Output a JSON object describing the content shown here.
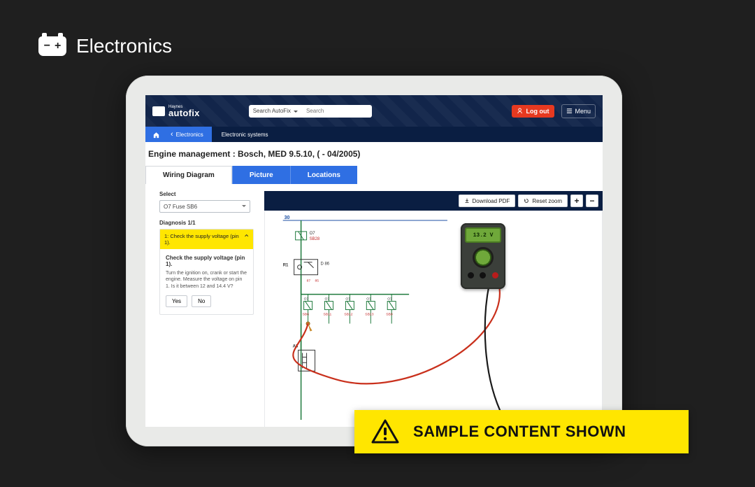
{
  "banner": {
    "title": "Electronics"
  },
  "app": {
    "logo_small": "Haynes",
    "logo_big": "autofix",
    "search_scope": "Search AutoFix",
    "search_placeholder": "Search",
    "logout": "Log out",
    "menu": "Menu"
  },
  "crumbs": {
    "back": "Electronics",
    "current": "Electronic systems"
  },
  "page_title": "Engine management :  Bosch, MED 9.5.10, ( - 04/2005)",
  "tabs": {
    "wiring": "Wiring Diagram",
    "picture": "Picture",
    "locations": "Locations"
  },
  "sidebar": {
    "select_label": "Select",
    "select_value": "O7  Fuse  SB6",
    "diagnosis_label": "Diagnosis 1/1",
    "acc_title": "1: Check the supply voltage (pin 1).",
    "acc_body_title": "Check the supply voltage (pin 1).",
    "acc_body_text": "Turn the ignition on, crank or start the engine. Measure the voltage on pin 1. Is it between 12 and 14.4 V?",
    "yes": "Yes",
    "no": "No"
  },
  "toolbar": {
    "download": "Download PDF",
    "reset": "Reset zoom",
    "plus": "+",
    "minus": "−"
  },
  "diagram": {
    "meter_reading": "13.2 V",
    "label_30": "30",
    "labels_top": {
      "o7": "O7",
      "sb28": "SB28"
    },
    "label_r1": "R1",
    "label_d86": "D 86",
    "label_a3": "A3",
    "fuse_row": [
      {
        "top": "O7",
        "bottom": "SB6"
      },
      {
        "top": "O7",
        "bottom": "SB11"
      },
      {
        "top": "O7",
        "bottom": "SB12"
      },
      {
        "top": "O7",
        "bottom": "SB13"
      },
      {
        "top": "O7",
        "bottom": "SB9"
      }
    ],
    "colors": {
      "wire_green": "#1f7a3d",
      "wire_red": "#b71c1c",
      "wire_blue": "#1c4fa3",
      "text_red": "#c22828",
      "probe_red": "#c9301c",
      "probe_black": "#1a1a1a",
      "node": "#333333"
    }
  },
  "sample_banner": "SAMPLE CONTENT SHOWN"
}
